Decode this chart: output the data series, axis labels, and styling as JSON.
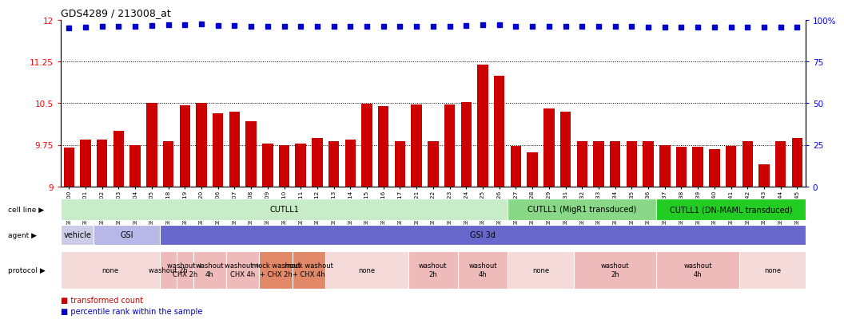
{
  "title": "GDS4289 / 213008_at",
  "bar_values": [
    9.7,
    9.85,
    9.85,
    10.0,
    9.75,
    10.5,
    9.82,
    10.46,
    10.5,
    10.32,
    10.35,
    10.18,
    9.78,
    9.75,
    9.78,
    9.88,
    9.81,
    9.85,
    10.49,
    10.45,
    9.81,
    10.47,
    9.82,
    10.48,
    10.52,
    11.2,
    11.0,
    9.73,
    9.62,
    10.4,
    10.35,
    9.82,
    9.82,
    9.82,
    9.82,
    9.82,
    9.75,
    9.72,
    9.72,
    9.68,
    9.73,
    9.82,
    9.4,
    9.82,
    9.87
  ],
  "dot_values": [
    11.86,
    11.87,
    11.88,
    11.89,
    11.89,
    11.9,
    11.91,
    11.91,
    11.92,
    11.9,
    11.9,
    11.89,
    11.89,
    11.88,
    11.88,
    11.88,
    11.88,
    11.88,
    11.89,
    11.89,
    11.88,
    11.89,
    11.89,
    11.89,
    11.9,
    11.91,
    11.91,
    11.88,
    11.88,
    11.89,
    11.89,
    11.88,
    11.88,
    11.88,
    11.88,
    11.87,
    11.87,
    11.87,
    11.87,
    11.87,
    11.87,
    11.87,
    11.87,
    11.87,
    11.87
  ],
  "xlabels": [
    "GSM731500",
    "GSM731501",
    "GSM731502",
    "GSM731503",
    "GSM731504",
    "GSM731505",
    "GSM731518",
    "GSM731519",
    "GSM731520",
    "GSM731506",
    "GSM731507",
    "GSM731508",
    "GSM731509",
    "GSM731510",
    "GSM731511",
    "GSM731512",
    "GSM731513",
    "GSM731514",
    "GSM731515",
    "GSM731516",
    "GSM731517",
    "GSM731521",
    "GSM731522",
    "GSM731523",
    "GSM731524",
    "GSM731525",
    "GSM731526",
    "GSM731527",
    "GSM731528",
    "GSM731529",
    "GSM731531",
    "GSM731532",
    "GSM731533",
    "GSM731534",
    "GSM731535",
    "GSM731536",
    "GSM731537",
    "GSM731538",
    "GSM731539",
    "GSM731540",
    "GSM731541",
    "GSM731542",
    "GSM731543",
    "GSM731544",
    "GSM731545"
  ],
  "bar_color": "#cc0000",
  "dot_color": "#0000cc",
  "cell_regions": [
    {
      "label": "CUTLL1",
      "start": 0,
      "end": 26,
      "color": "#c8ecc8"
    },
    {
      "label": "CUTLL1 (MigR1 transduced)",
      "start": 27,
      "end": 35,
      "color": "#88d888"
    },
    {
      "label": "CUTLL1 (DN-MAML transduced)",
      "start": 36,
      "end": 44,
      "color": "#22cc22"
    }
  ],
  "agent_regions": [
    {
      "label": "vehicle",
      "start": 0,
      "end": 1,
      "color": "#cccce8"
    },
    {
      "label": "GSI",
      "start": 2,
      "end": 5,
      "color": "#b8b8e8"
    },
    {
      "label": "GSI 3d",
      "start": 6,
      "end": 44,
      "color": "#6868cc"
    }
  ],
  "protocol_regions": [
    {
      "label": "none",
      "start": 0,
      "end": 5,
      "color": "#f5dada"
    },
    {
      "label": "washout 2h",
      "start": 6,
      "end": 6,
      "color": "#eebaba"
    },
    {
      "label": "washout +\nCHX 2h",
      "start": 7,
      "end": 7,
      "color": "#eebaba"
    },
    {
      "label": "washout\n4h",
      "start": 8,
      "end": 9,
      "color": "#eebaba"
    },
    {
      "label": "washout +\nCHX 4h",
      "start": 10,
      "end": 11,
      "color": "#eebaba"
    },
    {
      "label": "mock washout\n+ CHX 2h",
      "start": 12,
      "end": 13,
      "color": "#e08868"
    },
    {
      "label": "mock washout\n+ CHX 4h",
      "start": 14,
      "end": 15,
      "color": "#e08868"
    },
    {
      "label": "none",
      "start": 16,
      "end": 20,
      "color": "#f5dada"
    },
    {
      "label": "washout\n2h",
      "start": 21,
      "end": 23,
      "color": "#eebaba"
    },
    {
      "label": "washout\n4h",
      "start": 24,
      "end": 26,
      "color": "#eebaba"
    },
    {
      "label": "none",
      "start": 27,
      "end": 30,
      "color": "#f5dada"
    },
    {
      "label": "washout\n2h",
      "start": 31,
      "end": 35,
      "color": "#eebaba"
    },
    {
      "label": "washout\n4h",
      "start": 36,
      "end": 40,
      "color": "#eebaba"
    },
    {
      "label": "none",
      "start": 41,
      "end": 44,
      "color": "#f5dada"
    }
  ]
}
